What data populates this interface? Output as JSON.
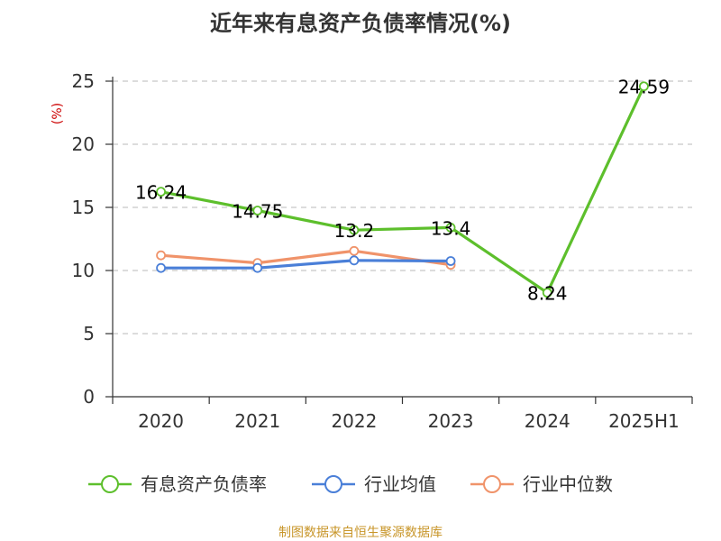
{
  "chart_data": {
    "type": "line",
    "title": "近年来有息资产负债率情况(%)",
    "ylabel": "(%)",
    "categories": [
      "2020",
      "2021",
      "2022",
      "2023",
      "2024",
      "2025H1"
    ],
    "ylim": [
      0,
      25
    ],
    "yticks": [
      0,
      5,
      10,
      15,
      20,
      25
    ],
    "grid": true,
    "legend_position": "bottom",
    "series": [
      {
        "name": "有息资产负债率",
        "color": "#5dbf2c",
        "values": [
          16.24,
          14.75,
          13.2,
          13.4,
          8.24,
          24.59
        ],
        "labels": [
          "16.24",
          "14.75",
          "13.2",
          "13.4",
          "8.24",
          "24.59"
        ],
        "show_labels": true
      },
      {
        "name": "行业均值",
        "color": "#4a7fd8",
        "values": [
          10.2,
          10.2,
          10.8,
          10.75,
          null,
          null
        ],
        "show_labels": false
      },
      {
        "name": "行业中位数",
        "color": "#f0936a",
        "values": [
          11.2,
          10.6,
          11.55,
          10.45,
          null,
          null
        ],
        "show_labels": false
      }
    ]
  },
  "source": "制图数据来自恒生聚源数据库"
}
